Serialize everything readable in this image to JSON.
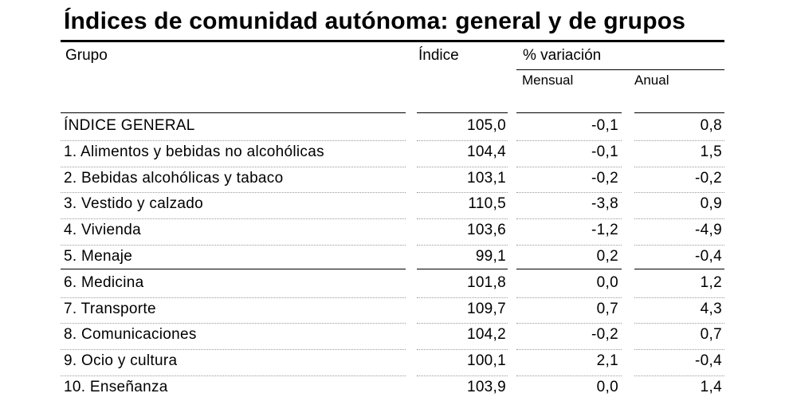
{
  "title": "Índices de comunidad autónoma: general y de grupos",
  "headers": {
    "grupo": "Grupo",
    "indice": "Índice",
    "variacion": "% variación",
    "mensual": "Mensual",
    "anual": "Anual"
  },
  "rows": [
    {
      "grupo": "ÍNDICE GENERAL",
      "indice": "105,0",
      "mensual": "-0,1",
      "anual": "0,8"
    },
    {
      "grupo": "1. Alimentos y bebidas no alcohólicas",
      "indice": "104,4",
      "mensual": "-0,1",
      "anual": "1,5"
    },
    {
      "grupo": "2. Bebidas alcohólicas y tabaco",
      "indice": "103,1",
      "mensual": "-0,2",
      "anual": "-0,2"
    },
    {
      "grupo": "3. Vestido y calzado",
      "indice": "110,5",
      "mensual": "-3,8",
      "anual": "0,9"
    },
    {
      "grupo": "4. Vivienda",
      "indice": "103,6",
      "mensual": "-1,2",
      "anual": "-4,9"
    },
    {
      "grupo": "5. Menaje",
      "indice": "99,1",
      "mensual": "0,2",
      "anual": "-0,4"
    },
    {
      "grupo": "6. Medicina",
      "indice": "101,8",
      "mensual": "0,0",
      "anual": "1,2"
    },
    {
      "grupo": "7. Transporte",
      "indice": "109,7",
      "mensual": "0,7",
      "anual": "4,3"
    },
    {
      "grupo": "8. Comunicaciones",
      "indice": "104,2",
      "mensual": "-0,2",
      "anual": "0,7"
    },
    {
      "grupo": "9. Ocio y cultura",
      "indice": "100,1",
      "mensual": "2,1",
      "anual": "-0,4"
    },
    {
      "grupo": "10. Enseñanza",
      "indice": "103,9",
      "mensual": "0,0",
      "anual": "1,4"
    }
  ]
}
